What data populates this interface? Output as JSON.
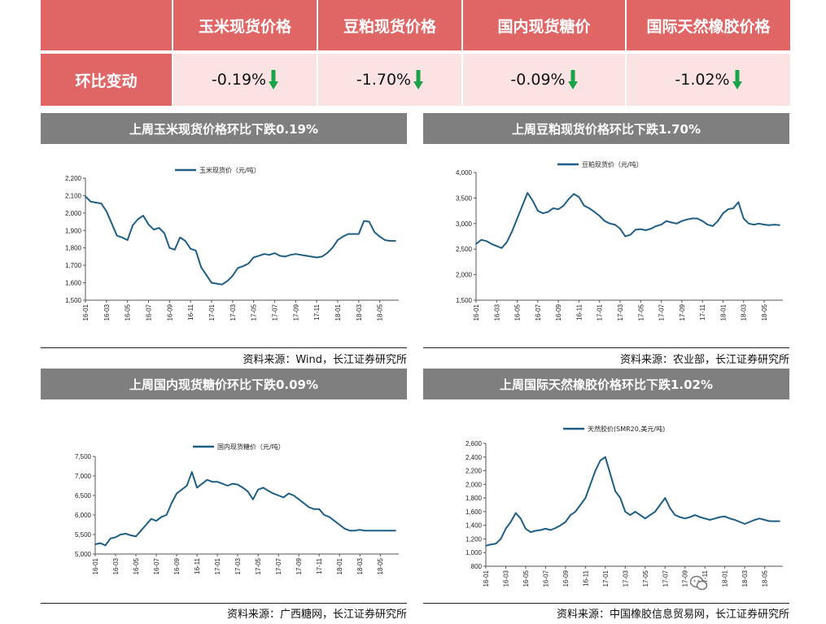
{
  "summary": {
    "headers": [
      "玉米现货价格",
      "豆粕现货价格",
      "国内现货糖价",
      "国际天然橡胶价格"
    ],
    "row_label": "环比变动",
    "values": [
      "-0.19%",
      "-1.70%",
      "-0.09%",
      "-1.02%"
    ],
    "arrow_color": "#1aa34a"
  },
  "charts": [
    {
      "title": "上周玉米现货价格环比下跌0.19%",
      "source": "资料来源：Wind，长江证券研究所",
      "legend": "玉米现货价（元/吨）",
      "yticks": [
        "2,200",
        "2,100",
        "2,000",
        "1,900",
        "1,800",
        "1,700",
        "1,600",
        "1,500"
      ],
      "xticks": [
        "16-01",
        "16-03",
        "16-05",
        "16-07",
        "16-09",
        "16-11",
        "17-01",
        "17-03",
        "17-05",
        "17-07",
        "17-09",
        "17-11",
        "18-01",
        "18-03",
        "18-05"
      ]
    },
    {
      "title": "上周豆粕现货价格环比下跌1.70%",
      "source": "资料来源：农业部，长江证券研究所",
      "legend": "豆粕现货价（元/吨）",
      "yticks": [
        "4,000",
        "3,500",
        "3,000",
        "2,500",
        "2,000",
        "1,500"
      ],
      "xticks": [
        "16-01",
        "16-03",
        "16-05",
        "16-07",
        "16-09",
        "16-11",
        "17-01",
        "17-03",
        "17-05",
        "17-07",
        "17-09",
        "17-11",
        "18-01",
        "18-03",
        "18-05"
      ]
    },
    {
      "title": "上周国内现货糖价环比下跌0.09%",
      "source": "资料来源：广西糖网，长江证券研究所",
      "legend": "国内现货糖价（元/吨）",
      "yticks": [
        "7,500",
        "7,000",
        "6,500",
        "6,000",
        "5,500",
        "5,000"
      ],
      "xticks": [
        "16-01",
        "16-03",
        "16-05",
        "16-07",
        "16-09",
        "16-11",
        "17-01",
        "17-03",
        "17-05",
        "17-07",
        "17-09",
        "17-11",
        "18-01",
        "18-03",
        "18-05"
      ]
    },
    {
      "title": "上周国际天然橡胶价格环比下跌1.02%",
      "source": "资料来源：中国橡胶信息贸易网，长江证券研究所",
      "legend": "天然胶价(SMR20,美元/吨)",
      "yticks": [
        "2,600",
        "2,400",
        "2,200",
        "2,000",
        "1,800",
        "1,600",
        "1,400",
        "1,200",
        "1,000",
        "800"
      ],
      "xticks": [
        "16-01",
        "16-03",
        "16-05",
        "16-07",
        "16-09",
        "16-11",
        "17-01",
        "17-03",
        "17-05",
        "17-07",
        "17-09",
        "17-11",
        "18-01",
        "18-03",
        "18-05"
      ]
    }
  ],
  "chart_data": [
    {
      "type": "line",
      "title": "上周玉米现货价格环比下跌0.19%",
      "series": [
        {
          "name": "玉米现货价（元/吨）",
          "color": "#1f5f85",
          "x": [
            0,
            0.5,
            1,
            1.5,
            2,
            2.5,
            3,
            3.5,
            4,
            4.5,
            5,
            5.5,
            6,
            6.5,
            7,
            7.5,
            8,
            8.5,
            9,
            9.5,
            10,
            10.5,
            11,
            11.5,
            12,
            12.5,
            13,
            13.5,
            14,
            14.5,
            15,
            15.5,
            16,
            16.5,
            17,
            17.5,
            18,
            18.5,
            19,
            19.5,
            20,
            20.5,
            21,
            21.5,
            22,
            22.5,
            23,
            23.5,
            24,
            24.5,
            25,
            25.5,
            26,
            26.5,
            27,
            27.5,
            28,
            28.5,
            29,
            29.5
          ],
          "y": [
            2095,
            2065,
            2060,
            2055,
            2010,
            1940,
            1870,
            1860,
            1845,
            1930,
            1965,
            1985,
            1935,
            1905,
            1915,
            1885,
            1800,
            1790,
            1860,
            1840,
            1795,
            1785,
            1690,
            1645,
            1600,
            1595,
            1590,
            1610,
            1640,
            1685,
            1695,
            1710,
            1745,
            1755,
            1765,
            1760,
            1770,
            1755,
            1750,
            1760,
            1765,
            1760,
            1755,
            1750,
            1745,
            1750,
            1770,
            1800,
            1845,
            1865,
            1880,
            1880,
            1880,
            1955,
            1950,
            1890,
            1865,
            1845,
            1840,
            1840
          ]
        }
      ],
      "ylim": [
        1500,
        2200
      ]
    },
    {
      "type": "line",
      "title": "上周豆粕现货价格环比下跌1.70%",
      "series": [
        {
          "name": "豆粕现货价（元/吨）",
          "color": "#1f5f85",
          "x": [
            0,
            0.5,
            1,
            1.5,
            2,
            2.5,
            3,
            3.5,
            4,
            4.5,
            5,
            5.5,
            6,
            6.5,
            7,
            7.5,
            8,
            8.5,
            9,
            9.5,
            10,
            10.5,
            11,
            11.5,
            12,
            12.5,
            13,
            13.5,
            14,
            14.5,
            15,
            15.5,
            16,
            16.5,
            17,
            17.5,
            18,
            18.5,
            19,
            19.5,
            20,
            20.5,
            21,
            21.5,
            22,
            22.5,
            23,
            23.5,
            24,
            24.5,
            25,
            25.5,
            26,
            26.5,
            27,
            27.5,
            28,
            28.5,
            29,
            29.5
          ],
          "y": [
            2600,
            2680,
            2660,
            2600,
            2560,
            2520,
            2640,
            2850,
            3100,
            3350,
            3600,
            3450,
            3250,
            3200,
            3230,
            3300,
            3280,
            3350,
            3480,
            3580,
            3520,
            3350,
            3300,
            3230,
            3150,
            3050,
            3000,
            2980,
            2900,
            2750,
            2780,
            2880,
            2890,
            2870,
            2900,
            2950,
            2980,
            3050,
            3020,
            3000,
            3050,
            3080,
            3100,
            3100,
            3050,
            2980,
            2950,
            3050,
            3200,
            3280,
            3300,
            3420,
            3100,
            3000,
            2980,
            3000,
            2980,
            2970,
            2980,
            2970
          ]
        }
      ],
      "ylim": [
        1500,
        4000
      ]
    },
    {
      "type": "line",
      "title": "上周国内现货糖价环比下跌0.09%",
      "series": [
        {
          "name": "国内现货糖价（元/吨）",
          "color": "#1f5f85",
          "x": [
            0,
            0.5,
            1,
            1.5,
            2,
            2.5,
            3,
            3.5,
            4,
            4.5,
            5,
            5.5,
            6,
            6.5,
            7,
            7.5,
            8,
            8.5,
            9,
            9.5,
            10,
            10.5,
            11,
            11.5,
            12,
            12.5,
            13,
            13.5,
            14,
            14.5,
            15,
            15.5,
            16,
            16.5,
            17,
            17.5,
            18,
            18.5,
            19,
            19.5,
            20,
            20.5,
            21,
            21.5,
            22,
            22.5,
            23,
            23.5,
            24,
            24.5,
            25,
            25.5,
            26,
            26.5,
            27,
            27.5,
            28,
            28.5,
            29,
            29.5
          ],
          "y": [
            5250,
            5280,
            5220,
            5400,
            5430,
            5500,
            5520,
            5480,
            5450,
            5600,
            5750,
            5900,
            5850,
            5950,
            6000,
            6300,
            6550,
            6650,
            6750,
            7100,
            6700,
            6800,
            6900,
            6850,
            6850,
            6800,
            6750,
            6800,
            6780,
            6700,
            6600,
            6400,
            6650,
            6700,
            6620,
            6550,
            6500,
            6450,
            6550,
            6500,
            6400,
            6300,
            6200,
            6150,
            6150,
            6000,
            5950,
            5850,
            5750,
            5650,
            5600,
            5600,
            5620,
            5600,
            5600,
            5600,
            5600,
            5600,
            5600,
            5600
          ]
        }
      ],
      "ylim": [
        5000,
        7500
      ]
    },
    {
      "type": "line",
      "title": "上周国际天然橡胶价格环比下跌1.02%",
      "series": [
        {
          "name": "天然胶价(SMR20,美元/吨)",
          "color": "#1f5f85",
          "x": [
            0,
            0.5,
            1,
            1.5,
            2,
            2.5,
            3,
            3.5,
            4,
            4.5,
            5,
            5.5,
            6,
            6.5,
            7,
            7.5,
            8,
            8.5,
            9,
            9.5,
            10,
            10.5,
            11,
            11.5,
            12,
            12.5,
            13,
            13.5,
            14,
            14.5,
            15,
            15.5,
            16,
            16.5,
            17,
            17.5,
            18,
            18.5,
            19,
            19.5,
            20,
            20.5,
            21,
            21.5,
            22,
            22.5,
            23,
            23.5,
            24,
            24.5,
            25,
            25.5,
            26,
            26.5,
            27,
            27.5,
            28,
            28.5,
            29,
            29.5
          ],
          "y": [
            1100,
            1120,
            1130,
            1200,
            1350,
            1450,
            1580,
            1500,
            1350,
            1300,
            1320,
            1330,
            1350,
            1330,
            1360,
            1400,
            1450,
            1550,
            1600,
            1700,
            1800,
            2000,
            2200,
            2350,
            2400,
            2150,
            1900,
            1800,
            1600,
            1550,
            1600,
            1550,
            1500,
            1550,
            1600,
            1700,
            1800,
            1650,
            1550,
            1520,
            1500,
            1520,
            1550,
            1520,
            1500,
            1480,
            1500,
            1520,
            1530,
            1500,
            1480,
            1450,
            1420,
            1450,
            1480,
            1500,
            1480,
            1460,
            1460,
            1460
          ]
        }
      ],
      "ylim": [
        800,
        2600
      ]
    }
  ]
}
